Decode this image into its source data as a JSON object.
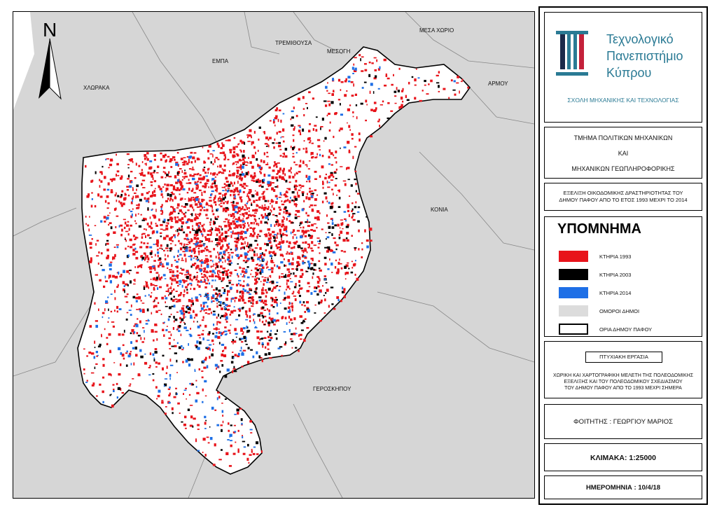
{
  "map": {
    "north_label": "N",
    "places": [
      {
        "id": "chloraka",
        "name": "ΧΛΩΡΑΚΑ"
      },
      {
        "id": "empa",
        "name": "ΕΜΠΑ"
      },
      {
        "id": "tremithousa",
        "name": "ΤΡΕΜΙΘΟΥΣΑ"
      },
      {
        "id": "mesogi",
        "name": "ΜΕΣΟΓΗ"
      },
      {
        "id": "mesa-chorio",
        "name": "ΜΕΣΑ ΧΩΡΙΟ"
      },
      {
        "id": "armou",
        "name": "ΑΡΜΟΥ"
      },
      {
        "id": "konia",
        "name": "ΚΟΝΙΑ"
      },
      {
        "id": "geroskipou",
        "name": "ΓΕΡΟΣΚΗΠΟΥ"
      }
    ],
    "colors": {
      "buildings_1993": "#e8141b",
      "buildings_2003": "#000000",
      "buildings_2014": "#1e6fe6",
      "neighbouring_municipalities": "#d6d6d6",
      "paphos_area": "#ffffff"
    }
  },
  "legend_panel": {
    "logo_lines": [
      "Τεχνολογικό",
      "Πανεπιστήμιο",
      "Κύπρου"
    ],
    "faculty": "ΣΧΟΛΗ ΜΗΧΑΝΙΚΗΣ ΚΑΙ ΤΕΧΝΟΛΟΓΙΑΣ",
    "department": {
      "line1": "ΤΜΗΜΑ ΠΟΛΙΤΙΚΩΝ ΜΗΧΑΝΙΚΩΝ",
      "line2": "ΚΑΙ",
      "line3": "ΜΗΧΑΝΙΚΩΝ ΓΕΩΠΛΗΡΟΦΟΡΙΚΗΣ"
    },
    "map_topic": {
      "line1": "ΕΞΕΛΙΞΗ ΟΙΚΟΔΟΜΙΚΗΣ ΔΡΑΣΤΗΡΙΟΤΗΤΑΣ ΤΟΥ",
      "line2": "ΔΗΜΟΥ ΠΑΦΟΥ ΑΠΟ ΤΟ ΕΤΟΣ 1993 ΜΕΧΡΙ ΤΟ 2014"
    },
    "legend": {
      "title": "ΥΠΟΜΝΗΜΑ",
      "items": [
        {
          "label": "ΚΤΗΡΙΑ 1993",
          "color": "#e8141b"
        },
        {
          "label": "ΚΤΗΡΙΑ 2003",
          "color": "#000000"
        },
        {
          "label": "ΚΤΗΡΙΑ 2014",
          "color": "#1e6fe6"
        },
        {
          "label": "ΟΜΟΡΟΙ ΔΗΜΟΙ",
          "color": "#dcdcdc"
        },
        {
          "label": "ΟΡΙΑ ΔΗΜΟΥ ΠΑΦΟΥ",
          "color": "#ffffff"
        }
      ]
    },
    "thesis": {
      "label": "ΠΤΥΧΙΑΚΗ ΕΡΓΑΣΙΑ",
      "line1": "ΧΩΡΙΚΗ ΚΑΙ ΧΑΡΤΟΓΡΑΦΙΚΗ ΜΕΛΕΤΗ ΤΗΣ ΠΟΛΕΟΔΟΜΙΚΗΣ",
      "line2": "ΕΞΕΛΙΞΗΣ ΚΑΙ ΤΟΥ ΠΟΛΕΟΔΟΜΙΚΟΥ ΣΧΕΔΙΑΣΜΟΥ",
      "line3": "ΤΟΥ ΔΗΜΟΥ ΠΑΦΟΥ ΑΠΟ ΤΟ 1993 ΜΕΧΡΙ ΣΗΜΕΡΑ"
    },
    "student": "ΦΟΙΤΗΤΗΣ : ΓΕΩΡΓΙΟΥ ΜΑΡΙΟΣ",
    "scale": "ΚΛΙΜΑΚΑ: 1:25000",
    "date": "ΗΜΕΡΟΜΗΝΙΑ : 10/4/18"
  }
}
